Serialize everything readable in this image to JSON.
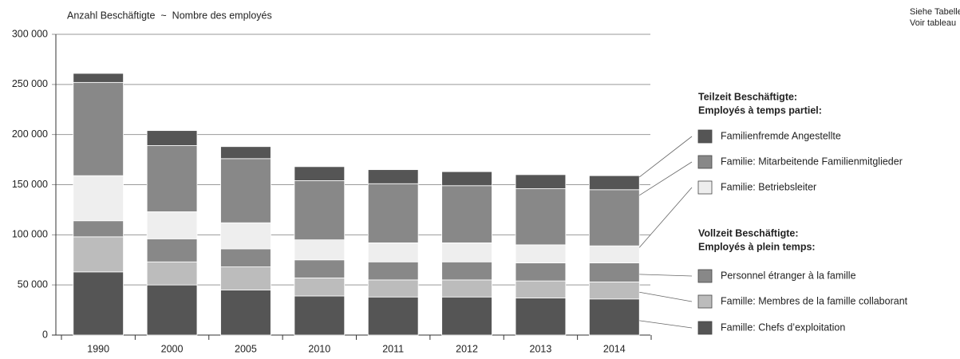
{
  "chart_data": {
    "type": "stacked_bar",
    "y_axis_label": "Anzahl Beschäftigte  ~  Nombre des employés",
    "note": [
      "Siehe Tabelle",
      "Voir tableau"
    ],
    "categories": [
      "1990",
      "2000",
      "2005",
      "2010",
      "2011",
      "2012",
      "2013",
      "2014"
    ],
    "series": [
      {
        "name": "Famille: Chefs d’exploitation",
        "color": "#555555",
        "values": [
          63000,
          50000,
          45000,
          39000,
          38000,
          38000,
          37000,
          36000
        ]
      },
      {
        "name": "Famille: Membres de la famille collaborant",
        "color": "#bcbcbc",
        "values": [
          35000,
          23000,
          23000,
          18000,
          17000,
          17000,
          17000,
          17000
        ]
      },
      {
        "name": "Personnel étranger à la famille",
        "color": "#888888",
        "values": [
          16000,
          23000,
          18000,
          18000,
          18000,
          18000,
          18000,
          19000
        ]
      },
      {
        "name": "Familie: Betriebsleiter",
        "color": "#eeeeee",
        "values": [
          45000,
          27000,
          26000,
          20000,
          19000,
          19000,
          18000,
          17000
        ]
      },
      {
        "name": "Familie: Mitarbeitende Familienmitglieder",
        "color": "#888888",
        "values": [
          93000,
          66000,
          64000,
          59000,
          59000,
          57000,
          56000,
          56000
        ]
      },
      {
        "name": "Familienfremde Angestellte",
        "color": "#555555",
        "values": [
          9000,
          15000,
          12000,
          14000,
          14000,
          14000,
          14000,
          14000
        ]
      }
    ],
    "legend_headings": [
      [
        "Teilzeit Beschäftigte:",
        "Employés à temps partiel:"
      ],
      [
        "Vollzeit Beschäftigte:",
        "Employés à plein temps:"
      ]
    ],
    "ylim": [
      0,
      300000
    ],
    "yticks": [
      0,
      {
        "value": 50000,
        "label": "50 000"
      },
      {
        "value": 100000,
        "label": "100 000"
      },
      {
        "value": 150000,
        "label": "150 000"
      },
      {
        "value": 200000,
        "label": "200 000"
      },
      {
        "value": 250000,
        "label": "250 000"
      },
      {
        "value": 300000,
        "label": "300 000"
      }
    ],
    "grid": true
  }
}
